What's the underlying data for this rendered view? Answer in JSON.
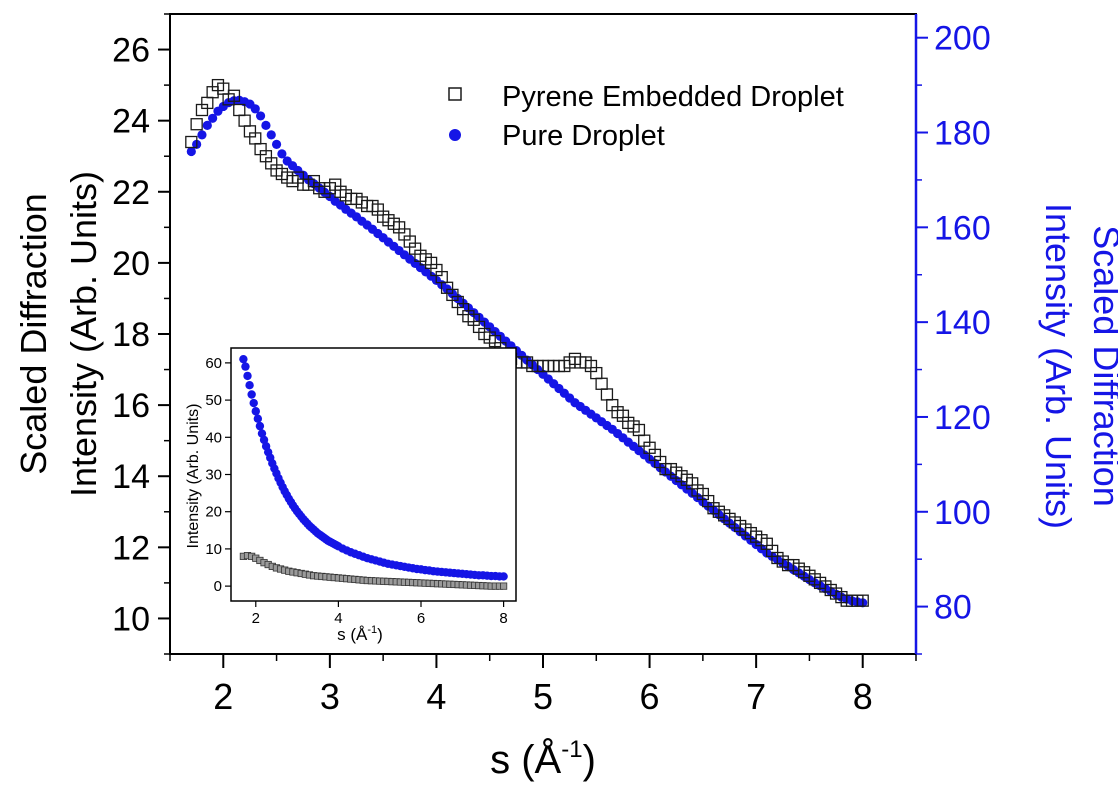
{
  "chart_data": [
    {
      "type": "scatter",
      "xlabel_base": "s (Å",
      "xlabel_sup": "-1",
      "xlabel_end": ")",
      "ylabel_left_line1": "Scaled Diffraction",
      "ylabel_left_line2": "Intensity (Arb. Units)",
      "ylabel_right_line1": "Scaled Diffraction",
      "ylabel_right_line2": "Intensity (Arb. Units)",
      "xlim": [
        1.5,
        8.5
      ],
      "ylim_left": [
        9,
        27
      ],
      "ylim_right": [
        70,
        205
      ],
      "x_ticks": [
        2,
        3,
        4,
        5,
        6,
        7,
        8
      ],
      "y_left_ticks": [
        10,
        12,
        14,
        16,
        18,
        20,
        22,
        24,
        26
      ],
      "y_right_ticks": [
        80,
        100,
        120,
        140,
        160,
        180,
        200
      ],
      "legend_position": "top-right",
      "colors": {
        "series1": "#1a1a1a",
        "series2": "#1515e6",
        "right_axis": "#1515e6"
      },
      "series": [
        {
          "name": "Pyrene Embedded Droplet",
          "marker": "open-square",
          "axis": "left",
          "x": [
            1.7,
            1.75,
            1.8,
            1.85,
            1.9,
            1.95,
            2.0,
            2.05,
            2.1,
            2.15,
            2.2,
            2.25,
            2.3,
            2.35,
            2.4,
            2.45,
            2.5,
            2.55,
            2.6,
            2.65,
            2.7,
            2.75,
            2.8,
            2.85,
            2.9,
            2.95,
            3.0,
            3.05,
            3.1,
            3.15,
            3.2,
            3.25,
            3.3,
            3.35,
            3.4,
            3.45,
            3.5,
            3.55,
            3.6,
            3.65,
            3.7,
            3.75,
            3.8,
            3.85,
            3.9,
            3.95,
            4.0,
            4.05,
            4.1,
            4.15,
            4.2,
            4.25,
            4.3,
            4.35,
            4.4,
            4.45,
            4.5,
            4.55,
            4.6,
            4.65,
            4.7,
            4.75,
            4.8,
            4.85,
            4.9,
            4.95,
            5.0,
            5.05,
            5.1,
            5.15,
            5.2,
            5.25,
            5.3,
            5.35,
            5.4,
            5.45,
            5.5,
            5.55,
            5.6,
            5.65,
            5.7,
            5.75,
            5.8,
            5.85,
            5.9,
            5.95,
            6.0,
            6.05,
            6.1,
            6.15,
            6.2,
            6.25,
            6.3,
            6.35,
            6.4,
            6.45,
            6.5,
            6.55,
            6.6,
            6.65,
            6.7,
            6.75,
            6.8,
            6.85,
            6.9,
            6.95,
            7.0,
            7.05,
            7.1,
            7.15,
            7.2,
            7.25,
            7.3,
            7.35,
            7.4,
            7.45,
            7.5,
            7.55,
            7.6,
            7.65,
            7.7,
            7.75,
            7.8,
            7.85,
            7.9,
            7.95,
            8.0
          ],
          "y": [
            23.4,
            23.9,
            24.3,
            24.5,
            24.8,
            25.0,
            24.9,
            24.6,
            24.7,
            24.3,
            24.0,
            23.7,
            23.5,
            23.2,
            23.0,
            22.8,
            22.6,
            22.5,
            22.4,
            22.3,
            22.4,
            22.2,
            22.2,
            22.3,
            22.1,
            22.0,
            22.1,
            22.2,
            22.0,
            21.9,
            21.8,
            21.8,
            21.7,
            21.6,
            21.6,
            21.5,
            21.3,
            21.2,
            21.1,
            21.0,
            20.8,
            20.6,
            20.4,
            20.2,
            20.1,
            20.0,
            19.8,
            19.6,
            19.3,
            19.1,
            18.9,
            18.7,
            18.5,
            18.4,
            18.2,
            18.0,
            17.9,
            17.8,
            17.6,
            17.4,
            17.3,
            17.2,
            17.2,
            17.2,
            17.1,
            17.1,
            17.1,
            17.1,
            17.1,
            17.1,
            17.1,
            17.2,
            17.3,
            17.2,
            17.2,
            17.1,
            16.9,
            16.6,
            16.3,
            16.0,
            15.8,
            15.7,
            15.5,
            15.4,
            15.3,
            15.0,
            14.8,
            14.6,
            14.4,
            14.2,
            14.2,
            14.1,
            14.0,
            13.9,
            13.8,
            13.6,
            13.5,
            13.3,
            13.1,
            13.0,
            12.9,
            12.8,
            12.7,
            12.6,
            12.5,
            12.4,
            12.3,
            12.2,
            12.1,
            11.9,
            11.7,
            11.6,
            11.5,
            11.5,
            11.4,
            11.3,
            11.2,
            11.1,
            11.0,
            10.9,
            10.8,
            10.7,
            10.6,
            10.5,
            10.5,
            10.5,
            10.5
          ]
        },
        {
          "name": "Pure Droplet",
          "marker": "filled-circle",
          "axis": "right",
          "x": [
            1.7,
            1.75,
            1.8,
            1.85,
            1.9,
            1.95,
            2.0,
            2.05,
            2.1,
            2.15,
            2.2,
            2.25,
            2.3,
            2.35,
            2.4,
            2.45,
            2.5,
            2.55,
            2.6,
            2.65,
            2.7,
            2.75,
            2.8,
            2.85,
            2.9,
            2.95,
            3.0,
            3.05,
            3.1,
            3.15,
            3.2,
            3.25,
            3.3,
            3.35,
            3.4,
            3.45,
            3.5,
            3.55,
            3.6,
            3.65,
            3.7,
            3.75,
            3.8,
            3.85,
            3.9,
            3.95,
            4.0,
            4.05,
            4.1,
            4.15,
            4.2,
            4.25,
            4.3,
            4.35,
            4.4,
            4.45,
            4.5,
            4.55,
            4.6,
            4.65,
            4.7,
            4.75,
            4.8,
            4.85,
            4.9,
            4.95,
            5.0,
            5.05,
            5.1,
            5.15,
            5.2,
            5.25,
            5.3,
            5.35,
            5.4,
            5.45,
            5.5,
            5.55,
            5.6,
            5.65,
            5.7,
            5.75,
            5.8,
            5.85,
            5.9,
            5.95,
            6.0,
            6.05,
            6.1,
            6.15,
            6.2,
            6.25,
            6.3,
            6.35,
            6.4,
            6.45,
            6.5,
            6.55,
            6.6,
            6.65,
            6.7,
            6.75,
            6.8,
            6.85,
            6.9,
            6.95,
            7.0,
            7.05,
            7.1,
            7.15,
            7.2,
            7.25,
            7.3,
            7.35,
            7.4,
            7.45,
            7.5,
            7.55,
            7.6,
            7.65,
            7.7,
            7.75,
            7.8,
            7.85,
            7.9,
            7.95,
            8.0
          ],
          "y": [
            176.0,
            177.5,
            179.5,
            181.5,
            183.0,
            184.5,
            185.5,
            186.3,
            186.7,
            186.8,
            186.5,
            186.0,
            185.0,
            183.5,
            181.5,
            179.5,
            177.5,
            175.5,
            174.0,
            173.0,
            172.0,
            171.0,
            170.0,
            169.2,
            168.3,
            167.4,
            166.5,
            165.5,
            164.7,
            163.8,
            163.0,
            162.2,
            161.3,
            160.5,
            159.6,
            158.7,
            157.8,
            156.9,
            156.0,
            155.1,
            154.2,
            153.3,
            152.4,
            151.5,
            150.6,
            149.7,
            148.8,
            147.9,
            147.0,
            146.0,
            145.0,
            144.0,
            143.0,
            142.0,
            141.0,
            140.0,
            139.0,
            138.0,
            137.0,
            136.0,
            135.0,
            134.0,
            133.0,
            132.0,
            131.0,
            130.0,
            129.0,
            128.0,
            127.0,
            126.0,
            125.0,
            124.0,
            123.0,
            122.2,
            121.4,
            120.6,
            119.8,
            119.0,
            118.2,
            117.4,
            116.5,
            115.6,
            114.7,
            113.8,
            112.9,
            112.0,
            111.1,
            110.2,
            109.3,
            108.4,
            107.5,
            106.6,
            105.7,
            104.8,
            103.9,
            103.0,
            102.1,
            101.2,
            100.3,
            99.4,
            98.5,
            97.6,
            96.7,
            95.8,
            94.9,
            94.0,
            93.1,
            92.2,
            91.3,
            90.6,
            89.9,
            89.2,
            88.5,
            87.8,
            87.1,
            86.4,
            85.7,
            85.0,
            84.4,
            83.8,
            83.2,
            82.6,
            82.0,
            81.6,
            81.2,
            81.0,
            80.8
          ]
        }
      ]
    },
    {
      "type": "scatter",
      "subtitle": "inset",
      "xlabel_base": "s (Å",
      "xlabel_sup": "-1",
      "xlabel_end": ")",
      "ylabel": "Intensity (Arb. Units)",
      "xlim": [
        1.4,
        8.3
      ],
      "ylim": [
        -4,
        64
      ],
      "x_ticks": [
        2,
        4,
        6,
        8
      ],
      "y_ticks": [
        0,
        10,
        20,
        30,
        40,
        50,
        60
      ],
      "series": [
        {
          "marker": "open-square",
          "x": [
            1.7,
            1.8,
            1.9,
            2.0,
            2.1,
            2.2,
            2.3,
            2.4,
            2.5,
            2.6,
            2.7,
            2.8,
            2.9,
            3.0,
            3.1,
            3.2,
            3.3,
            3.4,
            3.5,
            3.6,
            3.7,
            3.8,
            3.9,
            4.0,
            4.1,
            4.2,
            4.3,
            4.4,
            4.5,
            4.6,
            4.7,
            4.8,
            4.9,
            5.0,
            5.1,
            5.2,
            5.3,
            5.4,
            5.5,
            5.6,
            5.7,
            5.8,
            5.9,
            6.0,
            6.1,
            6.2,
            6.3,
            6.4,
            6.5,
            6.6,
            6.7,
            6.8,
            6.9,
            7.0,
            7.1,
            7.2,
            7.3,
            7.4,
            7.5,
            7.6,
            7.7,
            7.8,
            7.9,
            8.0
          ],
          "y": [
            8.0,
            8.2,
            8.0,
            7.5,
            6.9,
            6.3,
            5.8,
            5.3,
            4.9,
            4.6,
            4.3,
            4.0,
            3.8,
            3.6,
            3.4,
            3.2,
            3.0,
            2.8,
            2.7,
            2.6,
            2.5,
            2.4,
            2.3,
            2.2,
            2.1,
            2.0,
            1.9,
            1.8,
            1.7,
            1.6,
            1.5,
            1.45,
            1.4,
            1.35,
            1.3,
            1.25,
            1.2,
            1.15,
            1.1,
            1.05,
            1.0,
            0.95,
            0.9,
            0.85,
            0.8,
            0.75,
            0.7,
            0.65,
            0.6,
            0.55,
            0.5,
            0.45,
            0.4,
            0.35,
            0.3,
            0.25,
            0.2,
            0.15,
            0.1,
            0.05,
            0.0,
            0.0,
            0.0,
            0.0
          ]
        },
        {
          "marker": "filled-circle",
          "x": [
            1.7,
            1.75,
            1.8,
            1.85,
            1.9,
            1.95,
            2.0,
            2.05,
            2.1,
            2.15,
            2.2,
            2.25,
            2.3,
            2.35,
            2.4,
            2.45,
            2.5,
            2.55,
            2.6,
            2.65,
            2.7,
            2.75,
            2.8,
            2.85,
            2.9,
            2.95,
            3.0,
            3.05,
            3.1,
            3.15,
            3.2,
            3.25,
            3.3,
            3.35,
            3.4,
            3.45,
            3.5,
            3.55,
            3.6,
            3.65,
            3.7,
            3.75,
            3.8,
            3.85,
            3.9,
            3.95,
            4.0,
            4.1,
            4.2,
            4.3,
            4.4,
            4.5,
            4.6,
            4.7,
            4.8,
            4.9,
            5.0,
            5.1,
            5.2,
            5.3,
            5.4,
            5.5,
            5.6,
            5.7,
            5.8,
            5.9,
            6.0,
            6.1,
            6.2,
            6.3,
            6.4,
            6.5,
            6.6,
            6.7,
            6.8,
            6.9,
            7.0,
            7.1,
            7.2,
            7.3,
            7.4,
            7.5,
            7.6,
            7.7,
            7.8,
            7.9,
            8.0
          ],
          "y": [
            61.0,
            59.0,
            56.5,
            54.0,
            51.5,
            49.2,
            47.0,
            45.0,
            43.0,
            41.0,
            39.3,
            37.6,
            36.0,
            34.5,
            33.0,
            31.6,
            30.3,
            29.0,
            27.8,
            26.6,
            25.5,
            24.5,
            23.5,
            22.6,
            21.7,
            20.9,
            20.1,
            19.4,
            18.7,
            18.0,
            17.4,
            16.8,
            16.2,
            15.7,
            15.2,
            14.7,
            14.2,
            13.8,
            13.4,
            13.0,
            12.6,
            12.2,
            11.9,
            11.6,
            11.3,
            11.0,
            10.7,
            10.1,
            9.6,
            9.1,
            8.7,
            8.3,
            7.9,
            7.5,
            7.2,
            6.9,
            6.6,
            6.3,
            6.0,
            5.8,
            5.6,
            5.4,
            5.2,
            5.0,
            4.8,
            4.6,
            4.5,
            4.3,
            4.2,
            4.0,
            3.9,
            3.8,
            3.7,
            3.6,
            3.5,
            3.4,
            3.3,
            3.2,
            3.1,
            3.0,
            2.9,
            2.9,
            2.8,
            2.7,
            2.7,
            2.6,
            2.6
          ]
        }
      ]
    }
  ]
}
